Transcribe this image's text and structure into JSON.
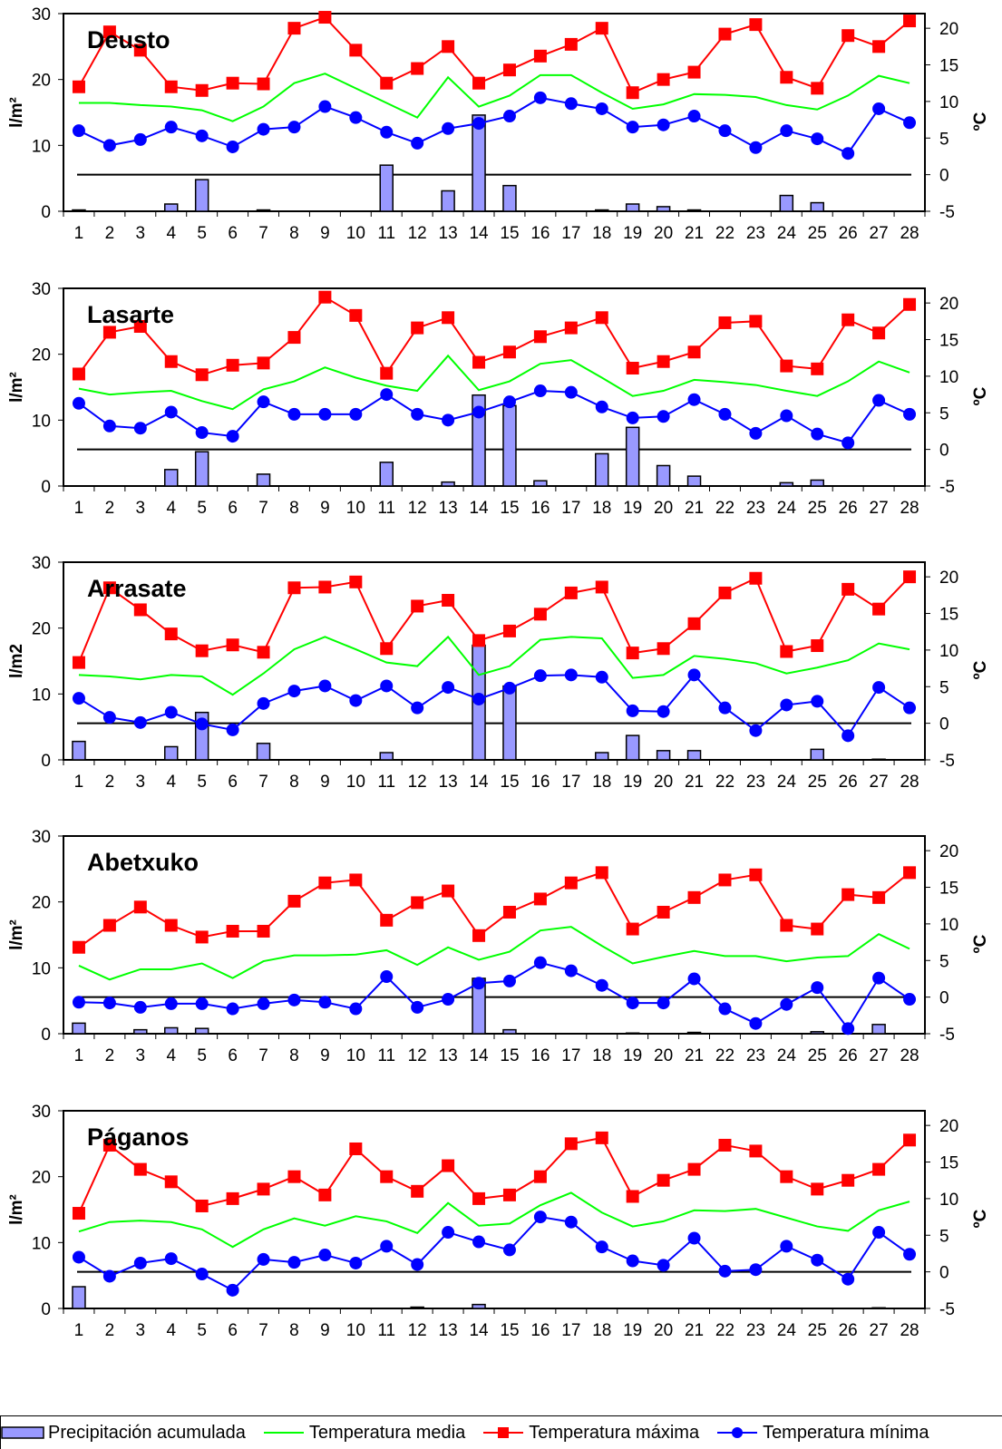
{
  "legend": {
    "precip": "Precipitación acumulada",
    "media": "Temperatura media",
    "maxima": "Temperatura máxima",
    "minima": "Temperatura mínima"
  },
  "colors": {
    "precip_fill": "#9999ff",
    "media": "#00ff00",
    "maxima": "#ff0000",
    "minima": "#0000ff",
    "zero_line": "#000000"
  },
  "chart_data": [
    {
      "type": "bar+line",
      "title": "Deusto",
      "ylabel_left": "l/m²",
      "ylabel_right": "ºC",
      "ylim_left": [
        0,
        30
      ],
      "ylim_right": [
        -5,
        22
      ],
      "yticks_left": [
        0,
        10,
        20,
        30
      ],
      "yticks_right": [
        -5,
        0,
        5,
        10,
        15,
        20
      ],
      "x": [
        1,
        2,
        3,
        4,
        5,
        6,
        7,
        8,
        9,
        10,
        11,
        12,
        13,
        14,
        15,
        16,
        17,
        18,
        19,
        20,
        21,
        22,
        23,
        24,
        25,
        26,
        27,
        28
      ],
      "precip": [
        0.2,
        0,
        0,
        1.1,
        4.8,
        0,
        0.2,
        0,
        0,
        0,
        7.0,
        0,
        3.1,
        14.6,
        3.9,
        0,
        0,
        0.2,
        1.1,
        0.7,
        0.2,
        0,
        0,
        2.4,
        1.3,
        0,
        0,
        0
      ],
      "tmax": [
        12,
        19.5,
        17,
        12,
        11.5,
        12.5,
        12.4,
        20,
        21.5,
        17,
        12.5,
        14.5,
        17.5,
        12.5,
        14.3,
        16.2,
        17.8,
        20,
        11.2,
        13,
        14,
        19.2,
        20.5,
        13.3,
        11.8,
        19,
        17.5,
        21
      ],
      "tmed": [
        9.8,
        9.8,
        9.5,
        9.3,
        8.8,
        7.3,
        9.3,
        12.5,
        13.8,
        11.8,
        9.8,
        7.8,
        13.3,
        9.3,
        10.8,
        13.6,
        13.6,
        11.2,
        9,
        9.6,
        11,
        10.9,
        10.6,
        9.5,
        8.9,
        10.8,
        13.5,
        12.5
      ],
      "tmin": [
        6,
        4,
        4.8,
        6.5,
        5.3,
        3.8,
        6.2,
        6.5,
        9.3,
        7.8,
        5.8,
        4.3,
        6.3,
        7,
        8,
        10.5,
        9.7,
        9,
        6.5,
        6.8,
        8,
        6,
        3.7,
        6,
        4.9,
        2.9,
        9,
        7.1
      ]
    },
    {
      "type": "bar+line",
      "title": "Lasarte",
      "ylabel_left": "l/m²",
      "ylabel_right": "ºC",
      "ylim_left": [
        0,
        30
      ],
      "ylim_right": [
        -5,
        22
      ],
      "yticks_left": [
        0,
        10,
        20,
        30
      ],
      "yticks_right": [
        -5,
        0,
        5,
        10,
        15,
        20
      ],
      "x": [
        1,
        2,
        3,
        4,
        5,
        6,
        7,
        8,
        9,
        10,
        11,
        12,
        13,
        14,
        15,
        16,
        17,
        18,
        19,
        20,
        21,
        22,
        23,
        24,
        25,
        26,
        27,
        28
      ],
      "precip": [
        0,
        0,
        0,
        2.5,
        5.2,
        0,
        1.8,
        0,
        0,
        0,
        3.6,
        0,
        0.6,
        13.8,
        12.2,
        0.8,
        0,
        4.9,
        8.9,
        3.1,
        1.5,
        0,
        0,
        0.5,
        0.9,
        0,
        0,
        0
      ],
      "tmax": [
        10.3,
        16,
        16.8,
        12,
        10.2,
        11.5,
        11.8,
        15.3,
        20.8,
        18.3,
        10.4,
        16.6,
        18,
        11.9,
        13.3,
        15.4,
        16.6,
        18,
        11.1,
        12,
        13.3,
        17.3,
        17.5,
        11.4,
        11,
        17.7,
        15.9,
        19.8
      ],
      "tmed": [
        8.3,
        7.5,
        7.8,
        8,
        6.6,
        5.5,
        8.2,
        9.3,
        11.2,
        9.8,
        8.7,
        8,
        12.8,
        8.1,
        9.3,
        11.7,
        12.2,
        9.8,
        7.3,
        8,
        9.5,
        9.2,
        8.8,
        8,
        7.3,
        9.3,
        12,
        10.5
      ],
      "tmin": [
        6.3,
        3.2,
        2.9,
        5.1,
        2.3,
        1.8,
        6.5,
        4.8,
        4.8,
        4.8,
        7.5,
        4.8,
        4,
        5.1,
        6.5,
        8,
        7.8,
        5.8,
        4.3,
        4.5,
        6.8,
        4.8,
        2.2,
        4.6,
        2.1,
        0.9,
        6.7,
        4.8
      ]
    },
    {
      "type": "bar+line",
      "title": "Arrasate",
      "ylabel_left": "l/m2",
      "ylabel_right": "ºC",
      "ylim_left": [
        0,
        30
      ],
      "ylim_right": [
        -5,
        22
      ],
      "yticks_left": [
        0,
        10,
        20,
        30
      ],
      "yticks_right": [
        -5,
        0,
        5,
        10,
        15,
        20
      ],
      "x": [
        1,
        2,
        3,
        4,
        5,
        6,
        7,
        8,
        9,
        10,
        11,
        12,
        13,
        14,
        15,
        16,
        17,
        18,
        19,
        20,
        21,
        22,
        23,
        24,
        25,
        26,
        27,
        28
      ],
      "precip": [
        2.8,
        0,
        0,
        2,
        7.2,
        0,
        2.5,
        0,
        0,
        0,
        1.1,
        0,
        0,
        17.4,
        11.2,
        0,
        0,
        1.1,
        3.7,
        1.4,
        1.4,
        0,
        0,
        0,
        1.6,
        0,
        0.1,
        0
      ],
      "tmax": [
        8.3,
        18.5,
        15.5,
        12.2,
        9.9,
        10.7,
        9.7,
        18.5,
        18.6,
        19.3,
        10.2,
        16,
        16.8,
        11.3,
        12.6,
        14.9,
        17.8,
        18.6,
        9.6,
        10.2,
        13.6,
        17.8,
        19.8,
        9.8,
        10.6,
        18.3,
        15.6,
        20
      ],
      "tmed": [
        6.6,
        6.4,
        6,
        6.6,
        6.4,
        3.9,
        6.8,
        10.1,
        11.8,
        10.1,
        8.3,
        7.8,
        11.8,
        6.6,
        7.8,
        11.4,
        11.8,
        11.6,
        6.2,
        6.6,
        9.2,
        8.8,
        8.2,
        6.8,
        7.6,
        8.6,
        10.9,
        10.1
      ],
      "tmin": [
        3.4,
        0.8,
        0.1,
        1.5,
        -0.1,
        -0.9,
        2.7,
        4.4,
        5.1,
        3.1,
        5.1,
        2.1,
        4.9,
        3.3,
        4.8,
        6.5,
        6.6,
        6.3,
        1.7,
        1.6,
        6.6,
        2.1,
        -1,
        2.5,
        3,
        -1.7,
        4.9,
        2.1
      ]
    },
    {
      "type": "bar+line",
      "title": "Abetxuko",
      "ylabel_left": "l/m²",
      "ylabel_right": "ºC",
      "ylim_left": [
        0,
        30
      ],
      "ylim_right": [
        -5,
        22
      ],
      "yticks_left": [
        0,
        10,
        20,
        30
      ],
      "yticks_right": [
        -5,
        0,
        5,
        10,
        15,
        20
      ],
      "x": [
        1,
        2,
        3,
        4,
        5,
        6,
        7,
        8,
        9,
        10,
        11,
        12,
        13,
        14,
        15,
        16,
        17,
        18,
        19,
        20,
        21,
        22,
        23,
        24,
        25,
        26,
        27,
        28
      ],
      "precip": [
        1.6,
        0,
        0.6,
        0.9,
        0.8,
        0,
        0,
        0,
        0,
        0,
        0,
        0,
        0,
        8.4,
        0.6,
        0,
        0,
        0,
        0.1,
        0,
        0.2,
        0,
        0,
        0,
        0.3,
        0,
        1.4,
        0
      ],
      "tmax": [
        6.8,
        9.8,
        12.3,
        9.8,
        8.2,
        9,
        9,
        13.1,
        15.6,
        16,
        10.5,
        12.9,
        14.5,
        8.4,
        11.6,
        13.4,
        15.6,
        17,
        9.3,
        11.6,
        13.6,
        16,
        16.7,
        9.8,
        9.3,
        14,
        13.6,
        17
      ],
      "tmed": [
        4.3,
        2.4,
        3.8,
        3.8,
        4.6,
        2.6,
        4.9,
        5.7,
        5.7,
        5.8,
        6.4,
        4.4,
        6.8,
        5.1,
        6.2,
        9.1,
        9.6,
        7,
        4.6,
        5.5,
        6.3,
        5.6,
        5.6,
        4.9,
        5.4,
        5.6,
        8.6,
        6.6
      ],
      "tmin": [
        -0.7,
        -0.8,
        -1.4,
        -0.9,
        -0.9,
        -1.6,
        -0.9,
        -0.4,
        -0.7,
        -1.6,
        2.8,
        -1.4,
        -0.3,
        1.9,
        2.2,
        4.7,
        3.6,
        1.6,
        -0.8,
        -0.8,
        2.5,
        -1.6,
        -3.6,
        -1,
        1.3,
        -4.3,
        2.6,
        -0.3
      ]
    },
    {
      "type": "bar+line",
      "title": "Páganos",
      "ylabel_left": "l/m²",
      "ylabel_right": "ºC",
      "ylim_left": [
        0,
        30
      ],
      "ylim_right": [
        -5,
        22
      ],
      "yticks_left": [
        0,
        10,
        20,
        30
      ],
      "yticks_right": [
        -5,
        0,
        5,
        10,
        15,
        20
      ],
      "x": [
        1,
        2,
        3,
        4,
        5,
        6,
        7,
        8,
        9,
        10,
        11,
        12,
        13,
        14,
        15,
        16,
        17,
        18,
        19,
        20,
        21,
        22,
        23,
        24,
        25,
        26,
        27,
        28
      ],
      "precip": [
        3.3,
        0,
        0,
        0,
        0,
        0,
        0,
        0,
        0,
        0,
        0,
        0.2,
        0,
        0.6,
        0,
        0,
        0,
        0,
        0,
        0,
        0,
        0,
        0,
        0,
        0,
        0,
        0.1,
        0
      ],
      "tmax": [
        8,
        17.3,
        14,
        12.3,
        9,
        10,
        11.3,
        13,
        10.5,
        16.8,
        13,
        11,
        14.5,
        10,
        10.5,
        13,
        17.5,
        18.3,
        10.3,
        12.5,
        14,
        17.3,
        16.5,
        13,
        11.3,
        12.5,
        14,
        18
      ],
      "tmed": [
        5.5,
        6.8,
        7,
        6.8,
        5.8,
        3.4,
        5.8,
        7.3,
        6.3,
        7.6,
        6.9,
        5.3,
        9.4,
        6.3,
        6.6,
        9.1,
        10.8,
        8.1,
        6.2,
        6.9,
        8.4,
        8.3,
        8.6,
        7.4,
        6.2,
        5.6,
        8.4,
        9.6
      ],
      "tmin": [
        2,
        -0.6,
        1.2,
        1.8,
        -0.3,
        -2.5,
        1.7,
        1.3,
        2.3,
        1.2,
        3.5,
        1,
        5.4,
        4.1,
        3,
        7.5,
        6.8,
        3.4,
        1.5,
        0.9,
        4.6,
        0.1,
        0.3,
        3.5,
        1.6,
        -1,
        5.4,
        2.4
      ]
    }
  ]
}
